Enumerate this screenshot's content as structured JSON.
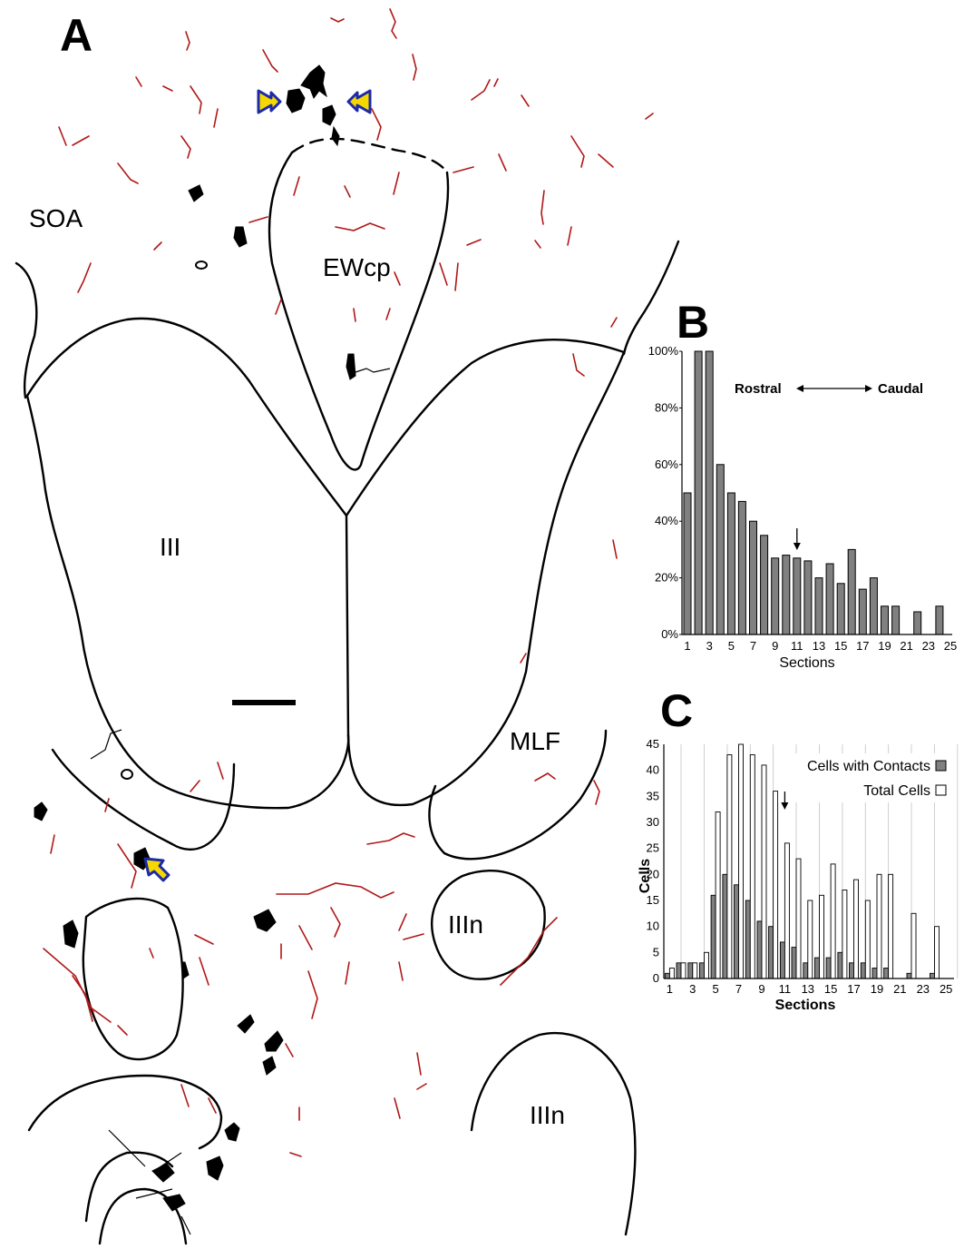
{
  "panel_a": {
    "letter": "A",
    "regions": {
      "soa": "SOA",
      "ewcp": "EWcp",
      "iii": "III",
      "mlf": "MLF",
      "iiin_1": "IIIn",
      "iiin_2": "IIIn"
    }
  },
  "colors": {
    "fiber": "#b01818",
    "bar": "#808080",
    "arrow_fill": "#f5d800",
    "arrow_stroke": "#1c2aa8"
  },
  "chart_data": [
    {
      "panel": "B",
      "type": "bar",
      "title": "",
      "xlabel": "Sections",
      "ylabel": "",
      "annotation": "Rostral ←→ Caudal",
      "annotation_left": "Rostral",
      "annotation_right": "Caudal",
      "marker_at_section": 11,
      "ylim": [
        0,
        100
      ],
      "y_ticks": [
        "0%",
        "20%",
        "40%",
        "60%",
        "80%",
        "100%"
      ],
      "x_ticks": [
        "1",
        "3",
        "5",
        "7",
        "9",
        "11",
        "13",
        "15",
        "17",
        "19",
        "21",
        "23",
        "25"
      ],
      "x": [
        1,
        2,
        3,
        4,
        5,
        6,
        7,
        8,
        9,
        10,
        11,
        12,
        13,
        14,
        15,
        16,
        17,
        18,
        19,
        20,
        21,
        22,
        23,
        24
      ],
      "values": [
        50,
        100,
        100,
        60,
        50,
        47,
        40,
        35,
        27,
        28,
        27,
        26,
        20,
        25,
        18,
        30,
        16,
        20,
        10,
        10,
        0,
        8,
        0,
        10
      ],
      "grid": false
    },
    {
      "panel": "C",
      "type": "bar",
      "title": "",
      "xlabel": "Sections",
      "ylabel": "Cells",
      "marker_at_section": 11,
      "ylim": [
        0,
        45
      ],
      "y_ticks": [
        "0",
        "5",
        "10",
        "15",
        "20",
        "25",
        "30",
        "35",
        "40",
        "45"
      ],
      "x_ticks": [
        "1",
        "3",
        "5",
        "7",
        "9",
        "11",
        "13",
        "15",
        "17",
        "19",
        "21",
        "23",
        "25"
      ],
      "x": [
        1,
        2,
        3,
        4,
        5,
        6,
        7,
        8,
        9,
        10,
        11,
        12,
        13,
        14,
        15,
        16,
        17,
        18,
        19,
        20,
        21,
        22,
        23,
        24
      ],
      "legend_position": "top-right",
      "grid": true,
      "series": [
        {
          "name": "Cells with Contacts",
          "fill": "#808080",
          "values": [
            1,
            3,
            3,
            3,
            16,
            20,
            18,
            15,
            11,
            10,
            7,
            6,
            3,
            4,
            4,
            5,
            3,
            3,
            2,
            2,
            0,
            1,
            0,
            1
          ]
        },
        {
          "name": "Total Cells",
          "fill": "#ffffff",
          "values": [
            2,
            3,
            3,
            5,
            32,
            43,
            45,
            43,
            41,
            36,
            26,
            23,
            15,
            16,
            22,
            17,
            19,
            15,
            20,
            20,
            0,
            12.5,
            0,
            10
          ]
        }
      ]
    }
  ]
}
